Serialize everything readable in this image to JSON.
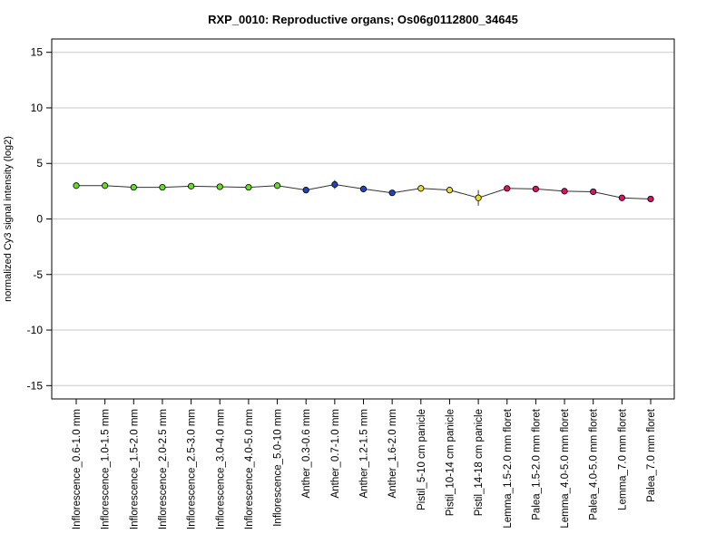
{
  "chart_data": {
    "type": "line",
    "title": "RXP_0010: Reproductive organs; Os06g0112800_34645",
    "xlabel": "",
    "ylabel": "normalized Cy3 signal intensity (log2)",
    "ylim": [
      -16.2,
      16.2
    ],
    "yticks": [
      -15,
      -10,
      -5,
      0,
      5,
      10,
      15
    ],
    "grid": true,
    "categories": [
      "Inflorescence_0.6-1.0 mm",
      "Inflorescence_1.0-1.5 mm",
      "Inflorescence_1.5-2.0 mm",
      "Inflorescence_2.0-2.5 mm",
      "Inflorescence_2.5-3.0 mm",
      "Inflorescence_3.0-4.0 mm",
      "Inflorescence_4.0-5.0 mm",
      "Inflorescence_5.0-10 mm",
      "Anther_0.3-0.6 mm",
      "Anther_0.7-1.0 mm",
      "Anther_1.2-1.5 mm",
      "Anther_1.6-2.0 mm",
      "Pistil_5-10 cm panicle",
      "Pistil_10-14 cm panicle",
      "Pistil_14-18 cm panicle",
      "Lemma_1.5-2.0 mm floret",
      "Palea_1.5-2.0 mm floret",
      "Lemma_4.0-5.0 mm floret",
      "Palea_4.0-5.0 mm floret",
      "Lemma_7.0 mm floret",
      "Palea_7.0 mm floret"
    ],
    "values": [
      3.0,
      3.0,
      2.85,
      2.85,
      2.95,
      2.9,
      2.85,
      3.0,
      2.6,
      3.1,
      2.7,
      2.35,
      2.75,
      2.6,
      1.9,
      2.75,
      2.7,
      2.5,
      2.45,
      1.9,
      1.8
    ],
    "error": [
      0.1,
      0.1,
      0.1,
      0.1,
      0.1,
      0.1,
      0.1,
      0.1,
      0.15,
      0.4,
      0.3,
      0.1,
      0.3,
      0.25,
      0.7,
      0.15,
      0.1,
      0.1,
      0.1,
      0.25,
      0.1
    ],
    "point_colors": [
      "#66dd22",
      "#66dd22",
      "#66dd22",
      "#66dd22",
      "#66dd22",
      "#66dd22",
      "#66dd22",
      "#66dd22",
      "#2244bb",
      "#2244bb",
      "#2244bb",
      "#2244bb",
      "#eedd22",
      "#eedd22",
      "#eedd22",
      "#dd1166",
      "#dd1166",
      "#dd1166",
      "#dd1166",
      "#dd1166",
      "#dd1166"
    ]
  }
}
